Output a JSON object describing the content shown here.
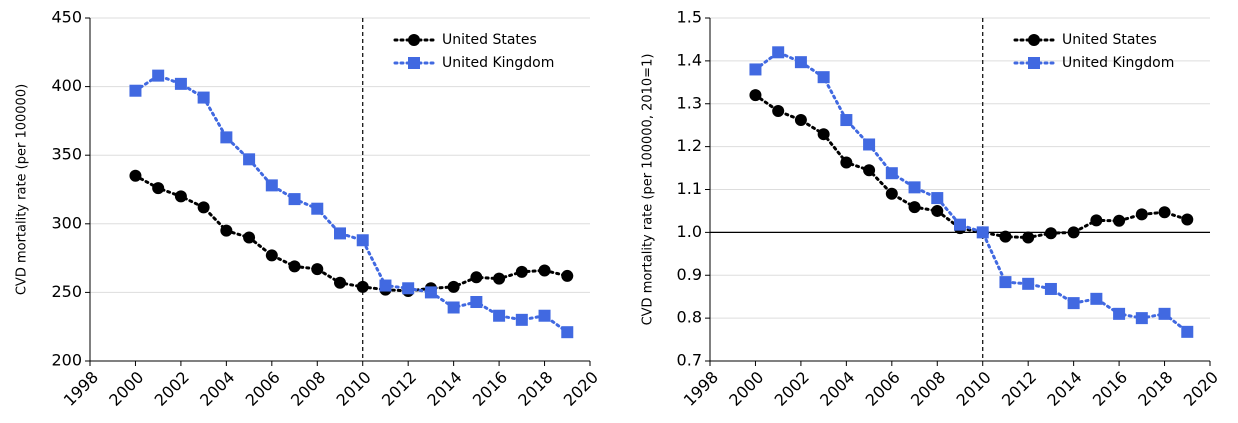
{
  "chart_data": [
    {
      "type": "line",
      "ylabel": "CVD mortality rate (per 100000)",
      "x": [
        2000,
        2001,
        2002,
        2003,
        2004,
        2005,
        2006,
        2007,
        2008,
        2009,
        2010,
        2011,
        2012,
        2013,
        2014,
        2015,
        2016,
        2017,
        2018,
        2019
      ],
      "series": [
        {
          "name": "United States",
          "color": "#000000",
          "marker": "circle",
          "values": [
            335,
            326,
            320,
            312,
            295,
            290,
            277,
            269,
            267,
            257,
            254,
            252,
            251,
            253,
            254,
            261,
            260,
            265,
            266,
            262
          ]
        },
        {
          "name": "United Kingdom",
          "color": "#4169e1",
          "marker": "square",
          "values": [
            397,
            408,
            402,
            392,
            363,
            347,
            328,
            318,
            311,
            293,
            288,
            255,
            253,
            250,
            239,
            243,
            233,
            230,
            233,
            221
          ]
        }
      ],
      "xlim": [
        1998,
        2020
      ],
      "xticks": [
        1998,
        2000,
        2002,
        2004,
        2006,
        2008,
        2010,
        2012,
        2014,
        2016,
        2018,
        2020
      ],
      "ylim": [
        200,
        450
      ],
      "yticks": [
        200,
        250,
        300,
        350,
        400,
        450
      ],
      "grid": true,
      "legend": "upper right",
      "vline": 2010
    },
    {
      "type": "line",
      "ylabel": "CVD mortality rate (per 100000, 2010=1)",
      "x": [
        2000,
        2001,
        2002,
        2003,
        2004,
        2005,
        2006,
        2007,
        2008,
        2009,
        2010,
        2011,
        2012,
        2013,
        2014,
        2015,
        2016,
        2017,
        2018,
        2019
      ],
      "series": [
        {
          "name": "United States",
          "color": "#000000",
          "marker": "circle",
          "values": [
            1.32,
            1.283,
            1.262,
            1.229,
            1.163,
            1.145,
            1.09,
            1.059,
            1.05,
            1.01,
            1.0,
            0.99,
            0.988,
            0.998,
            1.0,
            1.028,
            1.027,
            1.042,
            1.047,
            1.03
          ]
        },
        {
          "name": "United Kingdom",
          "color": "#4169e1",
          "marker": "square",
          "values": [
            1.38,
            1.42,
            1.397,
            1.362,
            1.262,
            1.205,
            1.138,
            1.105,
            1.08,
            1.018,
            1.0,
            0.884,
            0.88,
            0.868,
            0.835,
            0.845,
            0.81,
            0.8,
            0.81,
            0.768
          ]
        }
      ],
      "xlim": [
        1998,
        2020
      ],
      "xticks": [
        1998,
        2000,
        2002,
        2004,
        2006,
        2008,
        2010,
        2012,
        2014,
        2016,
        2018,
        2020
      ],
      "ylim": [
        0.7,
        1.5
      ],
      "yticks": [
        0.7,
        0.8,
        0.9,
        {
          "value": 1,
          "label": "1.0"
        },
        1.1,
        1.2,
        1.3,
        1.4,
        1.5
      ],
      "grid": true,
      "legend": "upper right",
      "vline": 2010,
      "hline": 1
    }
  ]
}
